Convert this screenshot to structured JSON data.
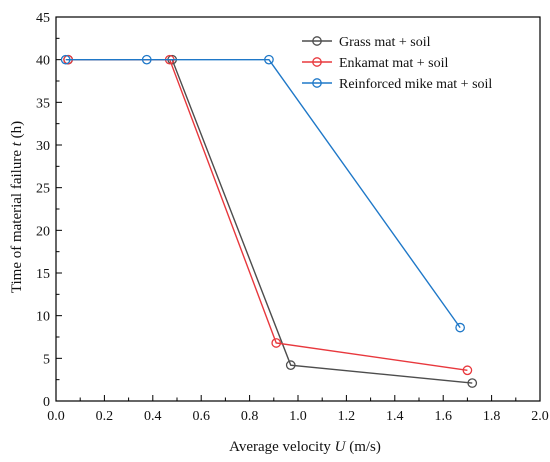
{
  "chart_data": {
    "type": "line",
    "xlabel": "Average velocity U (m/s)",
    "xlabel_parts": {
      "before": "Average velocity ",
      "var": "U",
      "after": " (m/s)"
    },
    "ylabel": "Time of material failure t (h)",
    "ylabel_parts": {
      "before": "Time of material failure ",
      "var": "t",
      "after": " (h)"
    },
    "xlim": [
      0.0,
      2.0
    ],
    "ylim": [
      0,
      45
    ],
    "x_ticks": [
      "0.0",
      "0.2",
      "0.4",
      "0.6",
      "0.8",
      "1.0",
      "1.2",
      "1.4",
      "1.6",
      "1.8",
      "2.0"
    ],
    "y_ticks": [
      "0",
      "5",
      "10",
      "15",
      "20",
      "25",
      "30",
      "35",
      "40",
      "45"
    ],
    "grid": false,
    "legend_position": "top-right",
    "marker": "open-circle",
    "series": [
      {
        "name": "Grass mat + soil",
        "color": "#4d4d4d",
        "points": [
          [
            0.05,
            40
          ],
          [
            0.48,
            40
          ],
          [
            0.97,
            4.2
          ],
          [
            1.72,
            2.1
          ]
        ]
      },
      {
        "name": "Enkamat mat + soil",
        "color": "#e8383d",
        "points": [
          [
            0.05,
            40
          ],
          [
            0.47,
            40
          ],
          [
            0.91,
            6.8
          ],
          [
            1.7,
            3.6
          ]
        ]
      },
      {
        "name": "Reinforced mike mat + soil",
        "color": "#1f78c8",
        "points": [
          [
            0.04,
            40
          ],
          [
            0.375,
            40
          ],
          [
            0.88,
            40
          ],
          [
            1.67,
            8.6
          ]
        ]
      }
    ]
  }
}
